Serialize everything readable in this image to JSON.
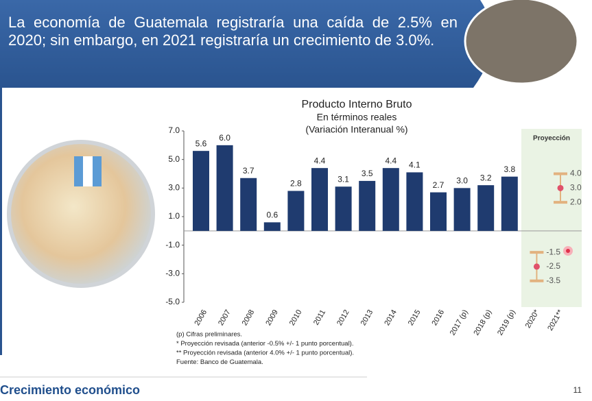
{
  "header": {
    "title": "La economía de Guatemala registraría una caída de 2.5% en 2020; sin embargo, en 2021 registraría un crecimiento de 3.0%."
  },
  "footer": {
    "section": "Crecimiento económico",
    "page": "11"
  },
  "chart_data": {
    "type": "bar",
    "title": "Producto Interno Bruto",
    "subtitle": [
      "En términos reales",
      "(Variación Interanual %)"
    ],
    "categories": [
      "2006",
      "2007",
      "2008",
      "2009",
      "2010",
      "2011",
      "2012",
      "2013",
      "2014",
      "2015",
      "2016",
      "2017 (p)",
      "2018 (p)",
      "2019 (p)",
      "2020*",
      "2021**"
    ],
    "values": [
      5.6,
      6.0,
      3.7,
      0.6,
      2.8,
      4.4,
      3.1,
      3.5,
      4.4,
      4.1,
      2.7,
      3.0,
      3.2,
      3.8,
      null,
      null
    ],
    "value_labels": [
      "5.6",
      "6.0",
      "3.7",
      "0.6",
      "2.8",
      "4.4",
      "3.1",
      "3.5",
      "4.4",
      "4.1",
      "2.7",
      "3.0",
      "3.2",
      "3.8",
      null,
      null
    ],
    "color": "#1f3b6f",
    "projection": {
      "label": "Proyección",
      "categories": [
        14,
        15
      ],
      "values": [
        -2.5,
        3.0
      ],
      "value_labels": [
        "-2.5",
        "3.0"
      ],
      "low": [
        -3.5,
        2.0
      ],
      "low_labels": [
        "-3.5",
        "2.0"
      ],
      "high": [
        -1.5,
        4.0
      ],
      "high_labels": [
        "-1.5",
        "4.0"
      ],
      "color": "#e0516a",
      "bar_color": "#e2b27f"
    },
    "ylim": [
      -5,
      7
    ],
    "yticks": [
      {
        "value": 7,
        "label": "7.0"
      },
      {
        "value": 5,
        "label": "5.0"
      },
      {
        "value": 3,
        "label": "3.0"
      },
      {
        "value": 1,
        "label": "1.0"
      },
      {
        "value": -1,
        "label": "-1.0"
      },
      {
        "value": -3,
        "label": "-3.0"
      },
      {
        "value": -5,
        "label": "-5.0"
      }
    ],
    "notes": [
      "(p) Cifras preliminares.",
      "* Proyección revisada (anterior -0.5% +/- 1 punto porcentual).",
      "** Proyección revisada (anterior 4.0% +/- 1 punto porcentual).",
      "Fuente: Banco de Guatemala."
    ]
  }
}
